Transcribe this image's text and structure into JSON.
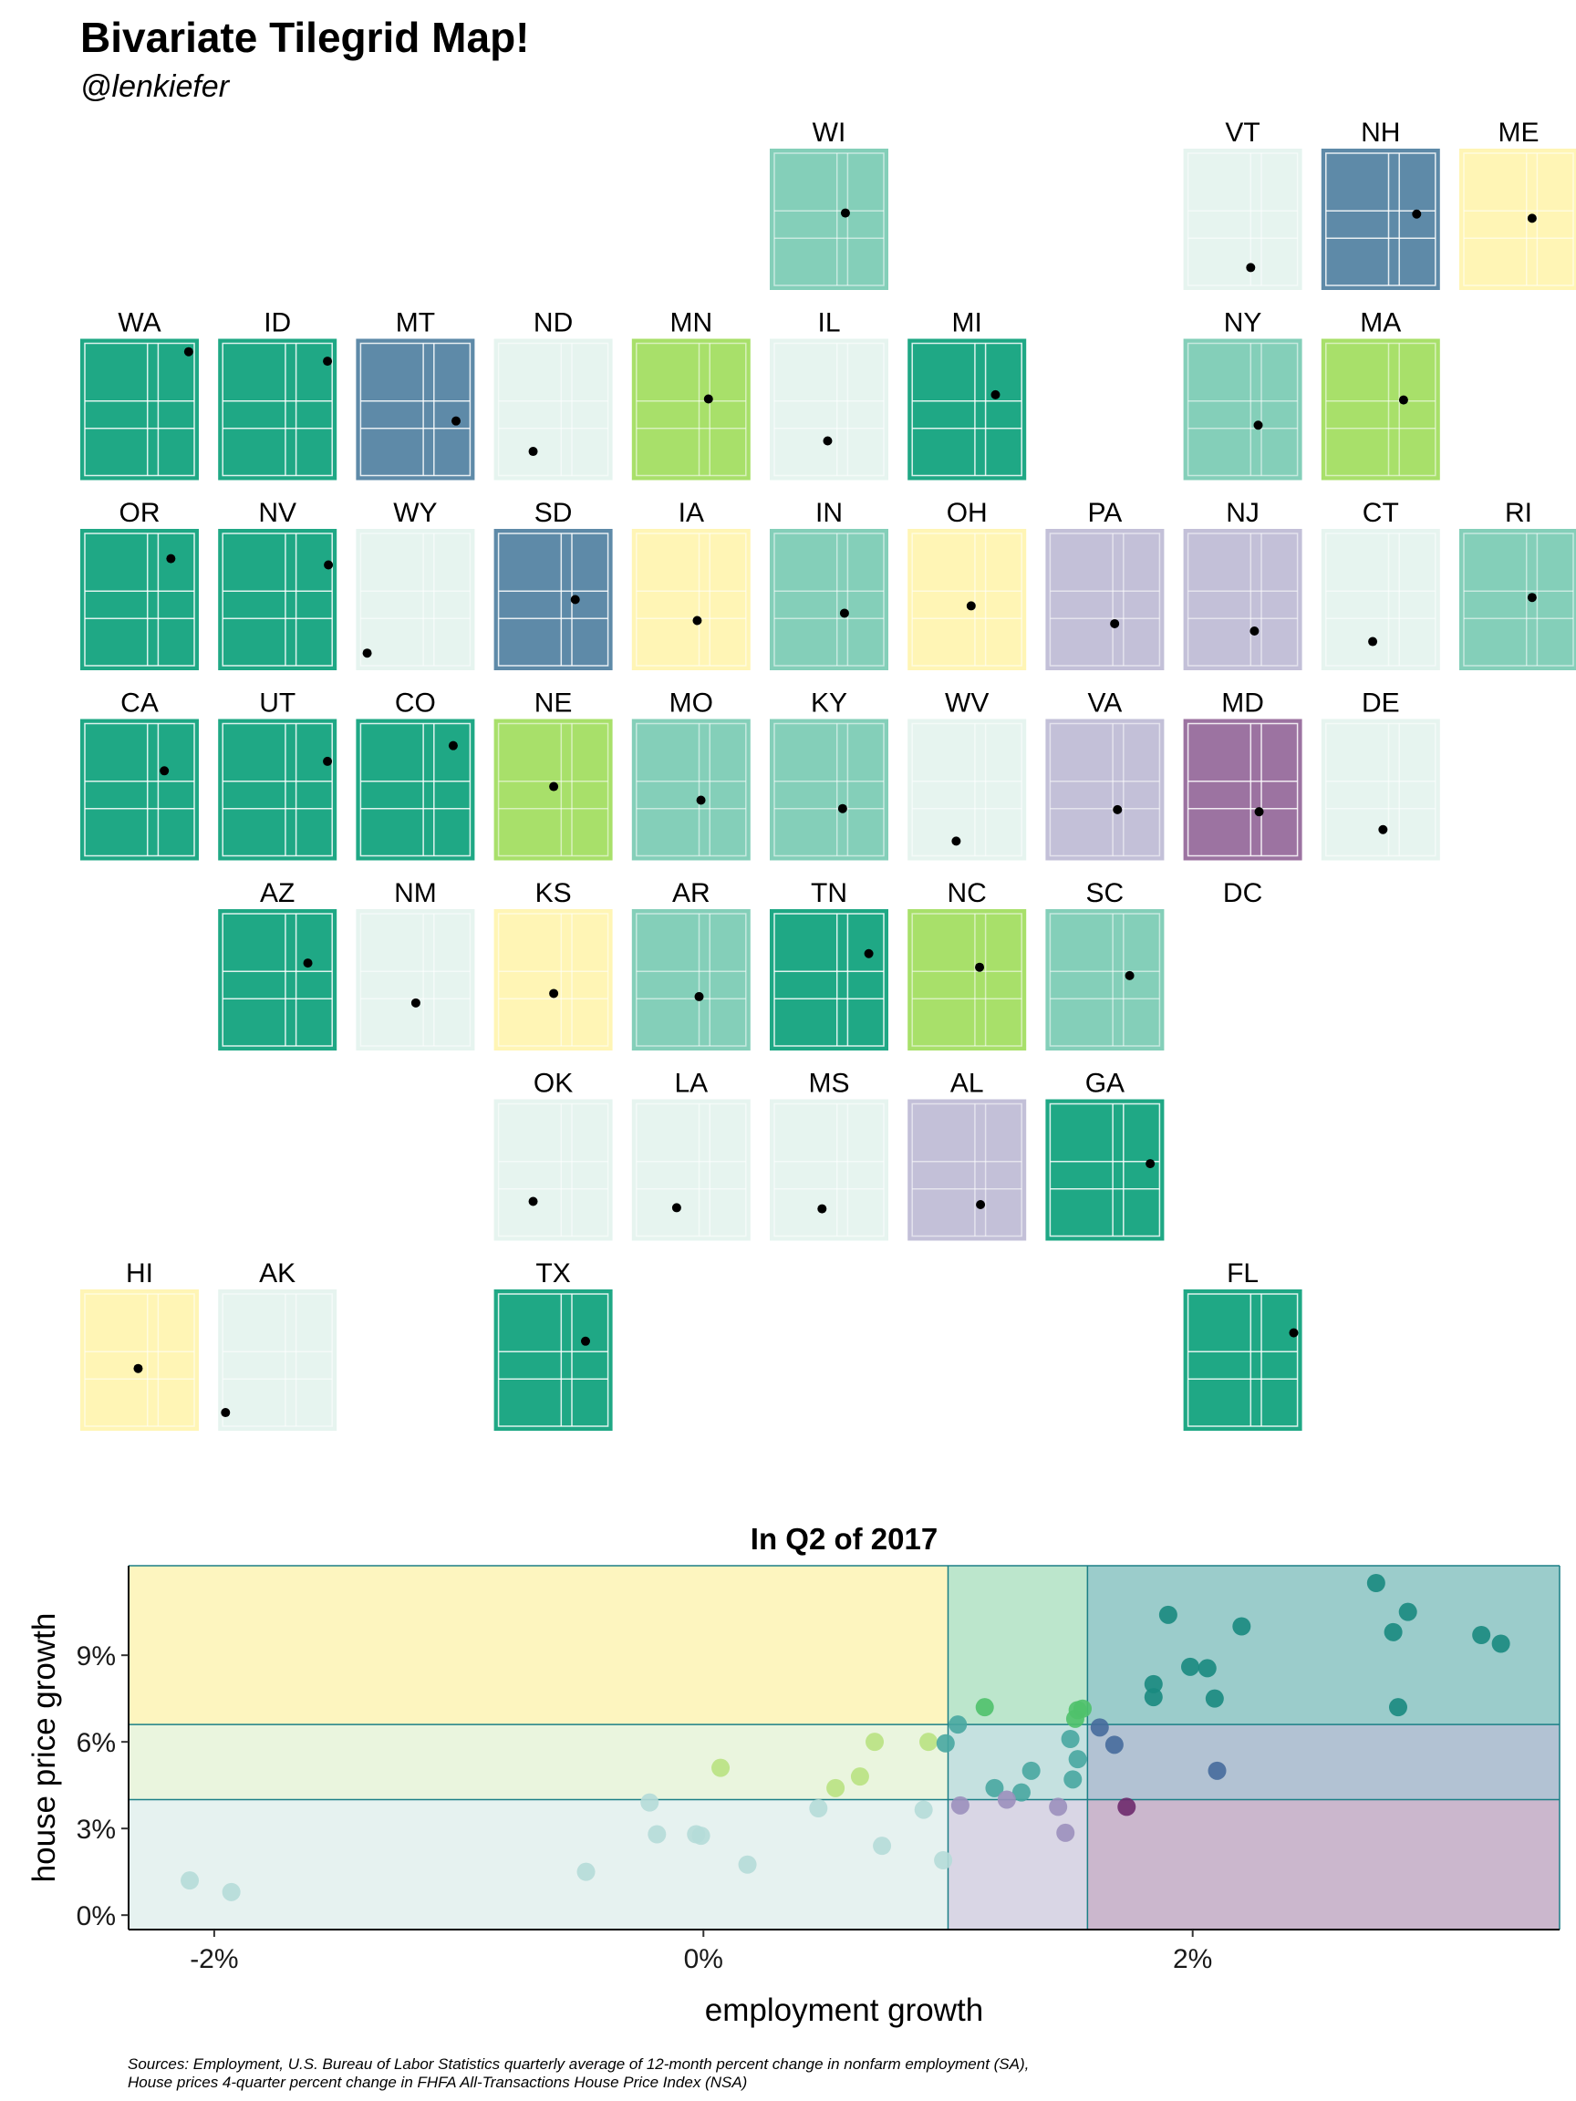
{
  "header": {
    "title": "Bivariate Tilegrid Map!",
    "subtitle": "@lenkiefer"
  },
  "colors": {
    "low_low": "#e6f4ef",
    "low_mid": "#e6f4ef",
    "low_high": "#fff5b5",
    "midx_low": "#e6f4ef",
    "midx_mid": "#e6f4ef",
    "midx_high": "#a8e06a",
    "mid_low": "#c3c0d8",
    "mid_mid": "#84cfb9",
    "mid_high": "#84cfb9",
    "high_low": "#9c73a1",
    "high_mid": "#5e8aa8",
    "high_high": "#1fa885"
  },
  "chart_data": [
    {
      "type": "tilegrid",
      "tiles": [
        {
          "state": "WI",
          "col": 5,
          "row": 0,
          "color": "#84cfb9",
          "emp": 1.45,
          "hpi": 6.4
        },
        {
          "state": "VT",
          "col": 8,
          "row": 0,
          "color": "#e6f4ef",
          "emp": 1.0,
          "hpi": 1.2
        },
        {
          "state": "NH",
          "col": 9,
          "row": 0,
          "color": "#5e8aa8",
          "emp": 2.5,
          "hpi": 6.3
        },
        {
          "state": "ME",
          "col": 10,
          "row": 0,
          "color": "#fff5b5",
          "emp": 1.3,
          "hpi": 5.9
        },
        {
          "state": "WA",
          "col": 0,
          "row": 1,
          "color": "#1fa885",
          "emp": 3.2,
          "hpi": 11.3
        },
        {
          "state": "ID",
          "col": 1,
          "row": 1,
          "color": "#1fa885",
          "emp": 3.25,
          "hpi": 10.4
        },
        {
          "state": "MT",
          "col": 2,
          "row": 1,
          "color": "#5e8aa8",
          "emp": 2.75,
          "hpi": 4.7
        },
        {
          "state": "ND",
          "col": 3,
          "row": 1,
          "color": "#e6f4ef",
          "emp": -0.5,
          "hpi": 1.8
        },
        {
          "state": "MN",
          "col": 4,
          "row": 1,
          "color": "#a8e06a",
          "emp": 1.5,
          "hpi": 6.8
        },
        {
          "state": "IL",
          "col": 5,
          "row": 1,
          "color": "#e6f4ef",
          "emp": 0.5,
          "hpi": 2.8
        },
        {
          "state": "MI",
          "col": 6,
          "row": 1,
          "color": "#1fa885",
          "emp": 2.1,
          "hpi": 7.2
        },
        {
          "state": "NY",
          "col": 8,
          "row": 1,
          "color": "#84cfb9",
          "emp": 1.4,
          "hpi": 4.3
        },
        {
          "state": "MA",
          "col": 9,
          "row": 1,
          "color": "#a8e06a",
          "emp": 1.8,
          "hpi": 6.7
        },
        {
          "state": "OR",
          "col": 0,
          "row": 2,
          "color": "#1fa885",
          "emp": 2.25,
          "hpi": 9.7
        },
        {
          "state": "NV",
          "col": 1,
          "row": 2,
          "color": "#1fa885",
          "emp": 3.3,
          "hpi": 9.1
        },
        {
          "state": "WY",
          "col": 2,
          "row": 2,
          "color": "#e6f4ef",
          "emp": -2.0,
          "hpi": 0.7
        },
        {
          "state": "SD",
          "col": 3,
          "row": 2,
          "color": "#5e8aa8",
          "emp": 1.75,
          "hpi": 5.8
        },
        {
          "state": "IA",
          "col": 4,
          "row": 2,
          "color": "#fff5b5",
          "emp": 0.9,
          "hpi": 3.8
        },
        {
          "state": "IN",
          "col": 5,
          "row": 2,
          "color": "#84cfb9",
          "emp": 1.4,
          "hpi": 4.5
        },
        {
          "state": "OH",
          "col": 6,
          "row": 2,
          "color": "#fff5b5",
          "emp": 0.8,
          "hpi": 5.2
        },
        {
          "state": "PA",
          "col": 7,
          "row": 2,
          "color": "#c3c0d8",
          "emp": 1.1,
          "hpi": 3.5
        },
        {
          "state": "NJ",
          "col": 8,
          "row": 2,
          "color": "#c3c0d8",
          "emp": 1.2,
          "hpi": 2.8
        },
        {
          "state": "CT",
          "col": 9,
          "row": 2,
          "color": "#e6f4ef",
          "emp": 0.15,
          "hpi": 1.8
        },
        {
          "state": "RI",
          "col": 10,
          "row": 2,
          "color": "#84cfb9",
          "emp": 1.3,
          "hpi": 6.0
        },
        {
          "state": "CA",
          "col": 0,
          "row": 3,
          "color": "#1fa885",
          "emp": 1.9,
          "hpi": 7.6
        },
        {
          "state": "UT",
          "col": 1,
          "row": 3,
          "color": "#1fa885",
          "emp": 3.25,
          "hpi": 8.5
        },
        {
          "state": "CO",
          "col": 2,
          "row": 3,
          "color": "#1fa885",
          "emp": 2.6,
          "hpi": 10.0
        },
        {
          "state": "NE",
          "col": 3,
          "row": 3,
          "color": "#a8e06a",
          "emp": 0.6,
          "hpi": 6.1
        },
        {
          "state": "MO",
          "col": 4,
          "row": 3,
          "color": "#84cfb9",
          "emp": 1.1,
          "hpi": 4.8
        },
        {
          "state": "KY",
          "col": 5,
          "row": 3,
          "color": "#84cfb9",
          "emp": 1.3,
          "hpi": 4.0
        },
        {
          "state": "WV",
          "col": 6,
          "row": 3,
          "color": "#e6f4ef",
          "emp": 0.0,
          "hpi": 0.9
        },
        {
          "state": "VA",
          "col": 7,
          "row": 3,
          "color": "#c3c0d8",
          "emp": 1.25,
          "hpi": 3.9
        },
        {
          "state": "MD",
          "col": 8,
          "row": 3,
          "color": "#9c73a1",
          "emp": 1.45,
          "hpi": 3.7
        },
        {
          "state": "DE",
          "col": 9,
          "row": 3,
          "color": "#e6f4ef",
          "emp": 0.7,
          "hpi": 2.0
        },
        {
          "state": "AZ",
          "col": 1,
          "row": 4,
          "color": "#1fa885",
          "emp": 2.2,
          "hpi": 7.4
        },
        {
          "state": "NM",
          "col": 2,
          "row": 4,
          "color": "#e6f4ef",
          "emp": 0.6,
          "hpi": 3.6
        },
        {
          "state": "KS",
          "col": 3,
          "row": 4,
          "color": "#fff5b5",
          "emp": 0.6,
          "hpi": 4.5
        },
        {
          "state": "AR",
          "col": 4,
          "row": 4,
          "color": "#84cfb9",
          "emp": 1.0,
          "hpi": 4.2
        },
        {
          "state": "TN",
          "col": 5,
          "row": 4,
          "color": "#1fa885",
          "emp": 2.7,
          "hpi": 8.3
        },
        {
          "state": "NC",
          "col": 6,
          "row": 4,
          "color": "#a8e06a",
          "emp": 1.25,
          "hpi": 7.0
        },
        {
          "state": "SC",
          "col": 7,
          "row": 4,
          "color": "#84cfb9",
          "emp": 1.9,
          "hpi": 6.2
        },
        {
          "state": "DC",
          "col": 8,
          "row": 4,
          "color": "none",
          "emp": null,
          "hpi": null
        },
        {
          "state": "OK",
          "col": 3,
          "row": 5,
          "color": "#e6f4ef",
          "emp": -0.5,
          "hpi": 2.8
        },
        {
          "state": "LA",
          "col": 4,
          "row": 5,
          "color": "#e6f4ef",
          "emp": -0.2,
          "hpi": 2.2
        },
        {
          "state": "MS",
          "col": 5,
          "row": 5,
          "color": "#e6f4ef",
          "emp": 0.2,
          "hpi": 2.1
        },
        {
          "state": "AL",
          "col": 6,
          "row": 5,
          "color": "#c3c0d8",
          "emp": 1.3,
          "hpi": 2.5
        },
        {
          "state": "GA",
          "col": 7,
          "row": 5,
          "color": "#1fa885",
          "emp": 3.0,
          "hpi": 6.4
        },
        {
          "state": "HI",
          "col": 0,
          "row": 6,
          "color": "#fff5b5",
          "emp": 0.5,
          "hpi": 5.0
        },
        {
          "state": "AK",
          "col": 1,
          "row": 6,
          "color": "#e6f4ef",
          "emp": -2.2,
          "hpi": 0.8
        },
        {
          "state": "TX",
          "col": 3,
          "row": 6,
          "color": "#1fa885",
          "emp": 2.3,
          "hpi": 7.6
        },
        {
          "state": "FL",
          "col": 8,
          "row": 6,
          "color": "#1fa885",
          "emp": 3.3,
          "hpi": 8.4
        }
      ]
    },
    {
      "type": "scatter",
      "title": "In Q2 of 2017",
      "xlabel": "employment growth",
      "ylabel": "house price growth",
      "xlim": [
        -2.35,
        3.5
      ],
      "ylim": [
        -0.5,
        12.1
      ],
      "x_ticks": [
        {
          "value": -2,
          "label": "-2%"
        },
        {
          "value": 0,
          "label": "0%"
        },
        {
          "value": 2,
          "label": "2%"
        }
      ],
      "y_ticks": [
        {
          "value": 0,
          "label": "0%"
        },
        {
          "value": 3,
          "label": "3%"
        },
        {
          "value": 6,
          "label": "6%"
        },
        {
          "value": 9,
          "label": "9%"
        }
      ],
      "x_breaks": [
        1.0,
        1.57
      ],
      "y_breaks": [
        4.0,
        6.6
      ],
      "zones": [
        {
          "x": [
            -2.35,
            1.0
          ],
          "y": [
            6.6,
            12.1
          ],
          "color": "#fdf5bf"
        },
        {
          "x": [
            1.0,
            1.57
          ],
          "y": [
            6.6,
            12.1
          ],
          "color": "#bce6cc"
        },
        {
          "x": [
            1.57,
            3.5
          ],
          "y": [
            6.6,
            12.1
          ],
          "color": "#9bcccb"
        },
        {
          "x": [
            -2.35,
            1.0
          ],
          "y": [
            4.0,
            6.6
          ],
          "color": "#eaf5de"
        },
        {
          "x": [
            1.0,
            1.57
          ],
          "y": [
            4.0,
            6.6
          ],
          "color": "#c5e1e0"
        },
        {
          "x": [
            1.57,
            3.5
          ],
          "y": [
            4.0,
            6.6
          ],
          "color": "#b2c2d3"
        },
        {
          "x": [
            -2.35,
            1.0
          ],
          "y": [
            -0.5,
            4.0
          ],
          "color": "#e6f2f0"
        },
        {
          "x": [
            1.0,
            1.57
          ],
          "y": [
            -0.5,
            4.0
          ],
          "color": "#d9d6e5"
        },
        {
          "x": [
            1.57,
            3.5
          ],
          "y": [
            -0.5,
            4.0
          ],
          "color": "#cbb7cd"
        }
      ],
      "points": [
        {
          "x": -2.1,
          "y": 1.2,
          "color": "#b5dcd8"
        },
        {
          "x": -1.93,
          "y": 0.8,
          "color": "#b5dcd8"
        },
        {
          "x": -0.48,
          "y": 1.5,
          "color": "#b5dcd8"
        },
        {
          "x": -0.22,
          "y": 3.9,
          "color": "#b5dcd8"
        },
        {
          "x": -0.19,
          "y": 2.8,
          "color": "#b5dcd8"
        },
        {
          "x": -0.03,
          "y": 2.8,
          "color": "#b5dcd8"
        },
        {
          "x": -0.01,
          "y": 2.75,
          "color": "#b5dcd8"
        },
        {
          "x": 0.18,
          "y": 1.75,
          "color": "#b5dcd8"
        },
        {
          "x": 0.47,
          "y": 3.7,
          "color": "#b5dcd8"
        },
        {
          "x": 0.73,
          "y": 2.4,
          "color": "#b5dcd8"
        },
        {
          "x": 0.9,
          "y": 3.65,
          "color": "#b5dcd8"
        },
        {
          "x": 0.98,
          "y": 1.9,
          "color": "#b5dcd8"
        },
        {
          "x": 0.07,
          "y": 5.1,
          "color": "#b9e282"
        },
        {
          "x": 0.54,
          "y": 4.4,
          "color": "#b9e282"
        },
        {
          "x": 0.64,
          "y": 4.8,
          "color": "#b9e282"
        },
        {
          "x": 0.7,
          "y": 6.0,
          "color": "#b9e282"
        },
        {
          "x": 0.92,
          "y": 6.0,
          "color": "#b9e282"
        },
        {
          "x": 1.15,
          "y": 7.2,
          "color": "#4fc16b"
        },
        {
          "x": 1.52,
          "y": 6.8,
          "color": "#4fc16b"
        },
        {
          "x": 1.53,
          "y": 7.1,
          "color": "#4fc16b"
        },
        {
          "x": 1.55,
          "y": 7.15,
          "color": "#4fc16b"
        },
        {
          "x": 0.99,
          "y": 5.95,
          "color": "#48a7a1"
        },
        {
          "x": 1.04,
          "y": 6.6,
          "color": "#48a7a1"
        },
        {
          "x": 1.19,
          "y": 4.4,
          "color": "#48a7a1"
        },
        {
          "x": 1.3,
          "y": 4.25,
          "color": "#48a7a1"
        },
        {
          "x": 1.34,
          "y": 5.0,
          "color": "#48a7a1"
        },
        {
          "x": 1.5,
          "y": 6.1,
          "color": "#48a7a1"
        },
        {
          "x": 1.51,
          "y": 4.7,
          "color": "#48a7a1"
        },
        {
          "x": 1.53,
          "y": 5.4,
          "color": "#48a7a1"
        },
        {
          "x": 1.05,
          "y": 3.8,
          "color": "#9b90bd"
        },
        {
          "x": 1.24,
          "y": 4.0,
          "color": "#9b90bd"
        },
        {
          "x": 1.45,
          "y": 3.75,
          "color": "#9b90bd"
        },
        {
          "x": 1.48,
          "y": 2.85,
          "color": "#9b90bd"
        },
        {
          "x": 1.62,
          "y": 6.5,
          "color": "#466c9c"
        },
        {
          "x": 1.68,
          "y": 5.9,
          "color": "#466c9c"
        },
        {
          "x": 2.1,
          "y": 5.0,
          "color": "#466c9c"
        },
        {
          "x": 1.73,
          "y": 3.75,
          "color": "#6e2a6d"
        },
        {
          "x": 1.84,
          "y": 7.55,
          "color": "#1a8a80"
        },
        {
          "x": 1.84,
          "y": 8.0,
          "color": "#1a8a80"
        },
        {
          "x": 1.9,
          "y": 10.4,
          "color": "#1a8a80"
        },
        {
          "x": 1.99,
          "y": 8.6,
          "color": "#1a8a80"
        },
        {
          "x": 2.06,
          "y": 8.55,
          "color": "#1a8a80"
        },
        {
          "x": 2.09,
          "y": 7.5,
          "color": "#1a8a80"
        },
        {
          "x": 2.2,
          "y": 10.0,
          "color": "#1a8a80"
        },
        {
          "x": 2.75,
          "y": 11.5,
          "color": "#1a8a80"
        },
        {
          "x": 2.82,
          "y": 9.8,
          "color": "#1a8a80"
        },
        {
          "x": 2.84,
          "y": 7.2,
          "color": "#1a8a80"
        },
        {
          "x": 2.88,
          "y": 10.5,
          "color": "#1a8a80"
        },
        {
          "x": 3.18,
          "y": 9.7,
          "color": "#1a8a80"
        },
        {
          "x": 3.26,
          "y": 9.4,
          "color": "#1a8a80"
        }
      ]
    }
  ],
  "footer": {
    "sources_line1": "Sources: Employment, U.S. Bureau of Labor Statistics quarterly average of 12-month percent change in nonfarm employment (SA),",
    "sources_line2": "House prices 4-quarter percent change in FHFA All-Transactions House Price Index (NSA)"
  }
}
